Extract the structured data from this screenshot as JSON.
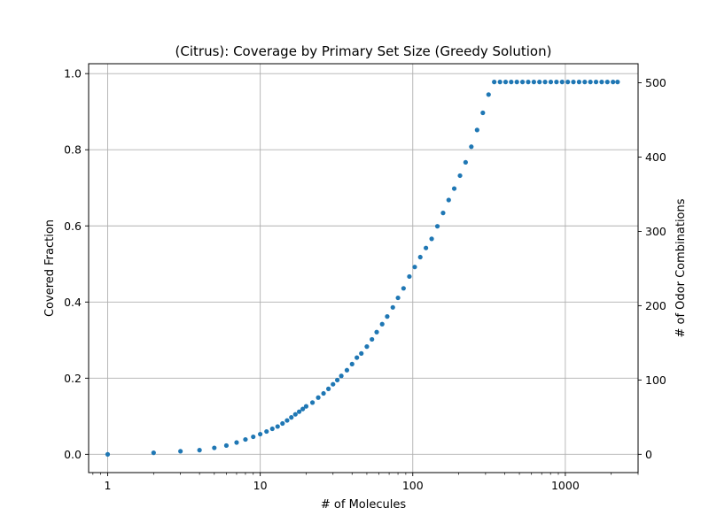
{
  "chart_data": {
    "type": "scatter",
    "title": "(Citrus): Coverage by Primary Set Size (Greedy Solution)",
    "xlabel": "# of Molecules",
    "ylabel": "Covered Fraction",
    "y2label": "# of Odor Combinations",
    "xscale": "log",
    "xlim": [
      0.75,
      3000
    ],
    "ylim": [
      -0.048,
      1.026
    ],
    "y2lim": [
      -24.6,
      525.6
    ],
    "xticks": [
      1,
      10,
      100,
      1000
    ],
    "xtick_labels": [
      "1",
      "10",
      "100",
      "1000"
    ],
    "yticks": [
      0.0,
      0.2,
      0.4,
      0.6,
      0.8,
      1.0
    ],
    "ytick_labels": [
      "0.0",
      "0.2",
      "0.4",
      "0.6",
      "0.8",
      "1.0"
    ],
    "y2ticks": [
      0,
      100,
      200,
      300,
      400,
      500
    ],
    "y2tick_labels": [
      "0",
      "100",
      "200",
      "300",
      "400",
      "500"
    ],
    "grid": true,
    "marker_color": "#1f77b4",
    "x": [
      1,
      2,
      3,
      4,
      5,
      6,
      7,
      8,
      9,
      10,
      11,
      12,
      13,
      14,
      15,
      16,
      17,
      18,
      19,
      20,
      22,
      24,
      26,
      28,
      30,
      32,
      34,
      37,
      40,
      43,
      46,
      50,
      54,
      58,
      63,
      68,
      74,
      80,
      87,
      95,
      103,
      112,
      122,
      133,
      145,
      158,
      172,
      187,
      204,
      222,
      242,
      264,
      288,
      314,
      342,
      373,
      406,
      442,
      481,
      524,
      571,
      622,
      677,
      737,
      803,
      875,
      953,
      1038,
      1130,
      1231,
      1341,
      1460,
      1590,
      1732,
      1886,
      2054,
      2200
    ],
    "y": [
      0.0,
      0.004,
      0.008,
      0.011,
      0.017,
      0.023,
      0.031,
      0.039,
      0.046,
      0.053,
      0.06,
      0.067,
      0.073,
      0.081,
      0.089,
      0.097,
      0.105,
      0.112,
      0.119,
      0.126,
      0.136,
      0.149,
      0.16,
      0.172,
      0.184,
      0.195,
      0.206,
      0.221,
      0.237,
      0.254,
      0.265,
      0.283,
      0.302,
      0.321,
      0.342,
      0.362,
      0.386,
      0.411,
      0.436,
      0.467,
      0.492,
      0.518,
      0.542,
      0.566,
      0.599,
      0.634,
      0.668,
      0.698,
      0.732,
      0.767,
      0.808,
      0.852,
      0.897,
      0.945,
      0.978,
      0.978,
      0.978,
      0.978,
      0.978,
      0.978,
      0.978,
      0.978,
      0.978,
      0.978,
      0.978,
      0.978,
      0.978,
      0.978,
      0.978,
      0.978,
      0.978,
      0.978,
      0.978,
      0.978,
      0.978,
      0.978,
      0.978
    ]
  }
}
